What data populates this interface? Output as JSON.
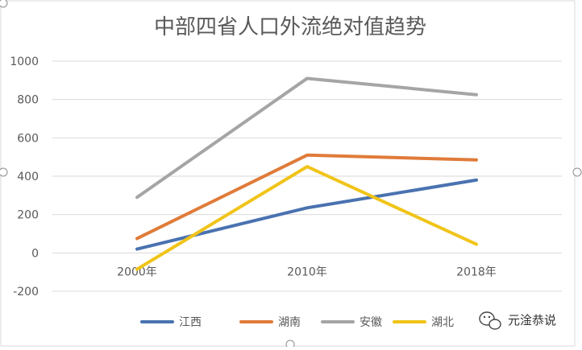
{
  "chart_data": {
    "type": "line",
    "title": "中部四省人口外流绝对值趋势",
    "categories": [
      "2000年",
      "2010年",
      "2018年"
    ],
    "series": [
      {
        "name": "江西",
        "color": "#4a72b0",
        "values": [
          20,
          235,
          380
        ]
      },
      {
        "name": "湖南",
        "color": "#e07b39",
        "values": [
          75,
          510,
          485
        ]
      },
      {
        "name": "安徽",
        "color": "#a5a5a5",
        "values": [
          290,
          910,
          825
        ]
      },
      {
        "name": "湖北",
        "color": "#f0c419",
        "values": [
          -85,
          450,
          45
        ]
      }
    ],
    "y_ticks": [
      "1000",
      "800",
      "600",
      "400",
      "200",
      "0",
      "-200"
    ],
    "ylim": [
      -200,
      1000
    ],
    "grid": true,
    "legend_position": "bottom"
  },
  "watermark": {
    "text": "元淦恭说",
    "icon": "wechat-icon"
  }
}
